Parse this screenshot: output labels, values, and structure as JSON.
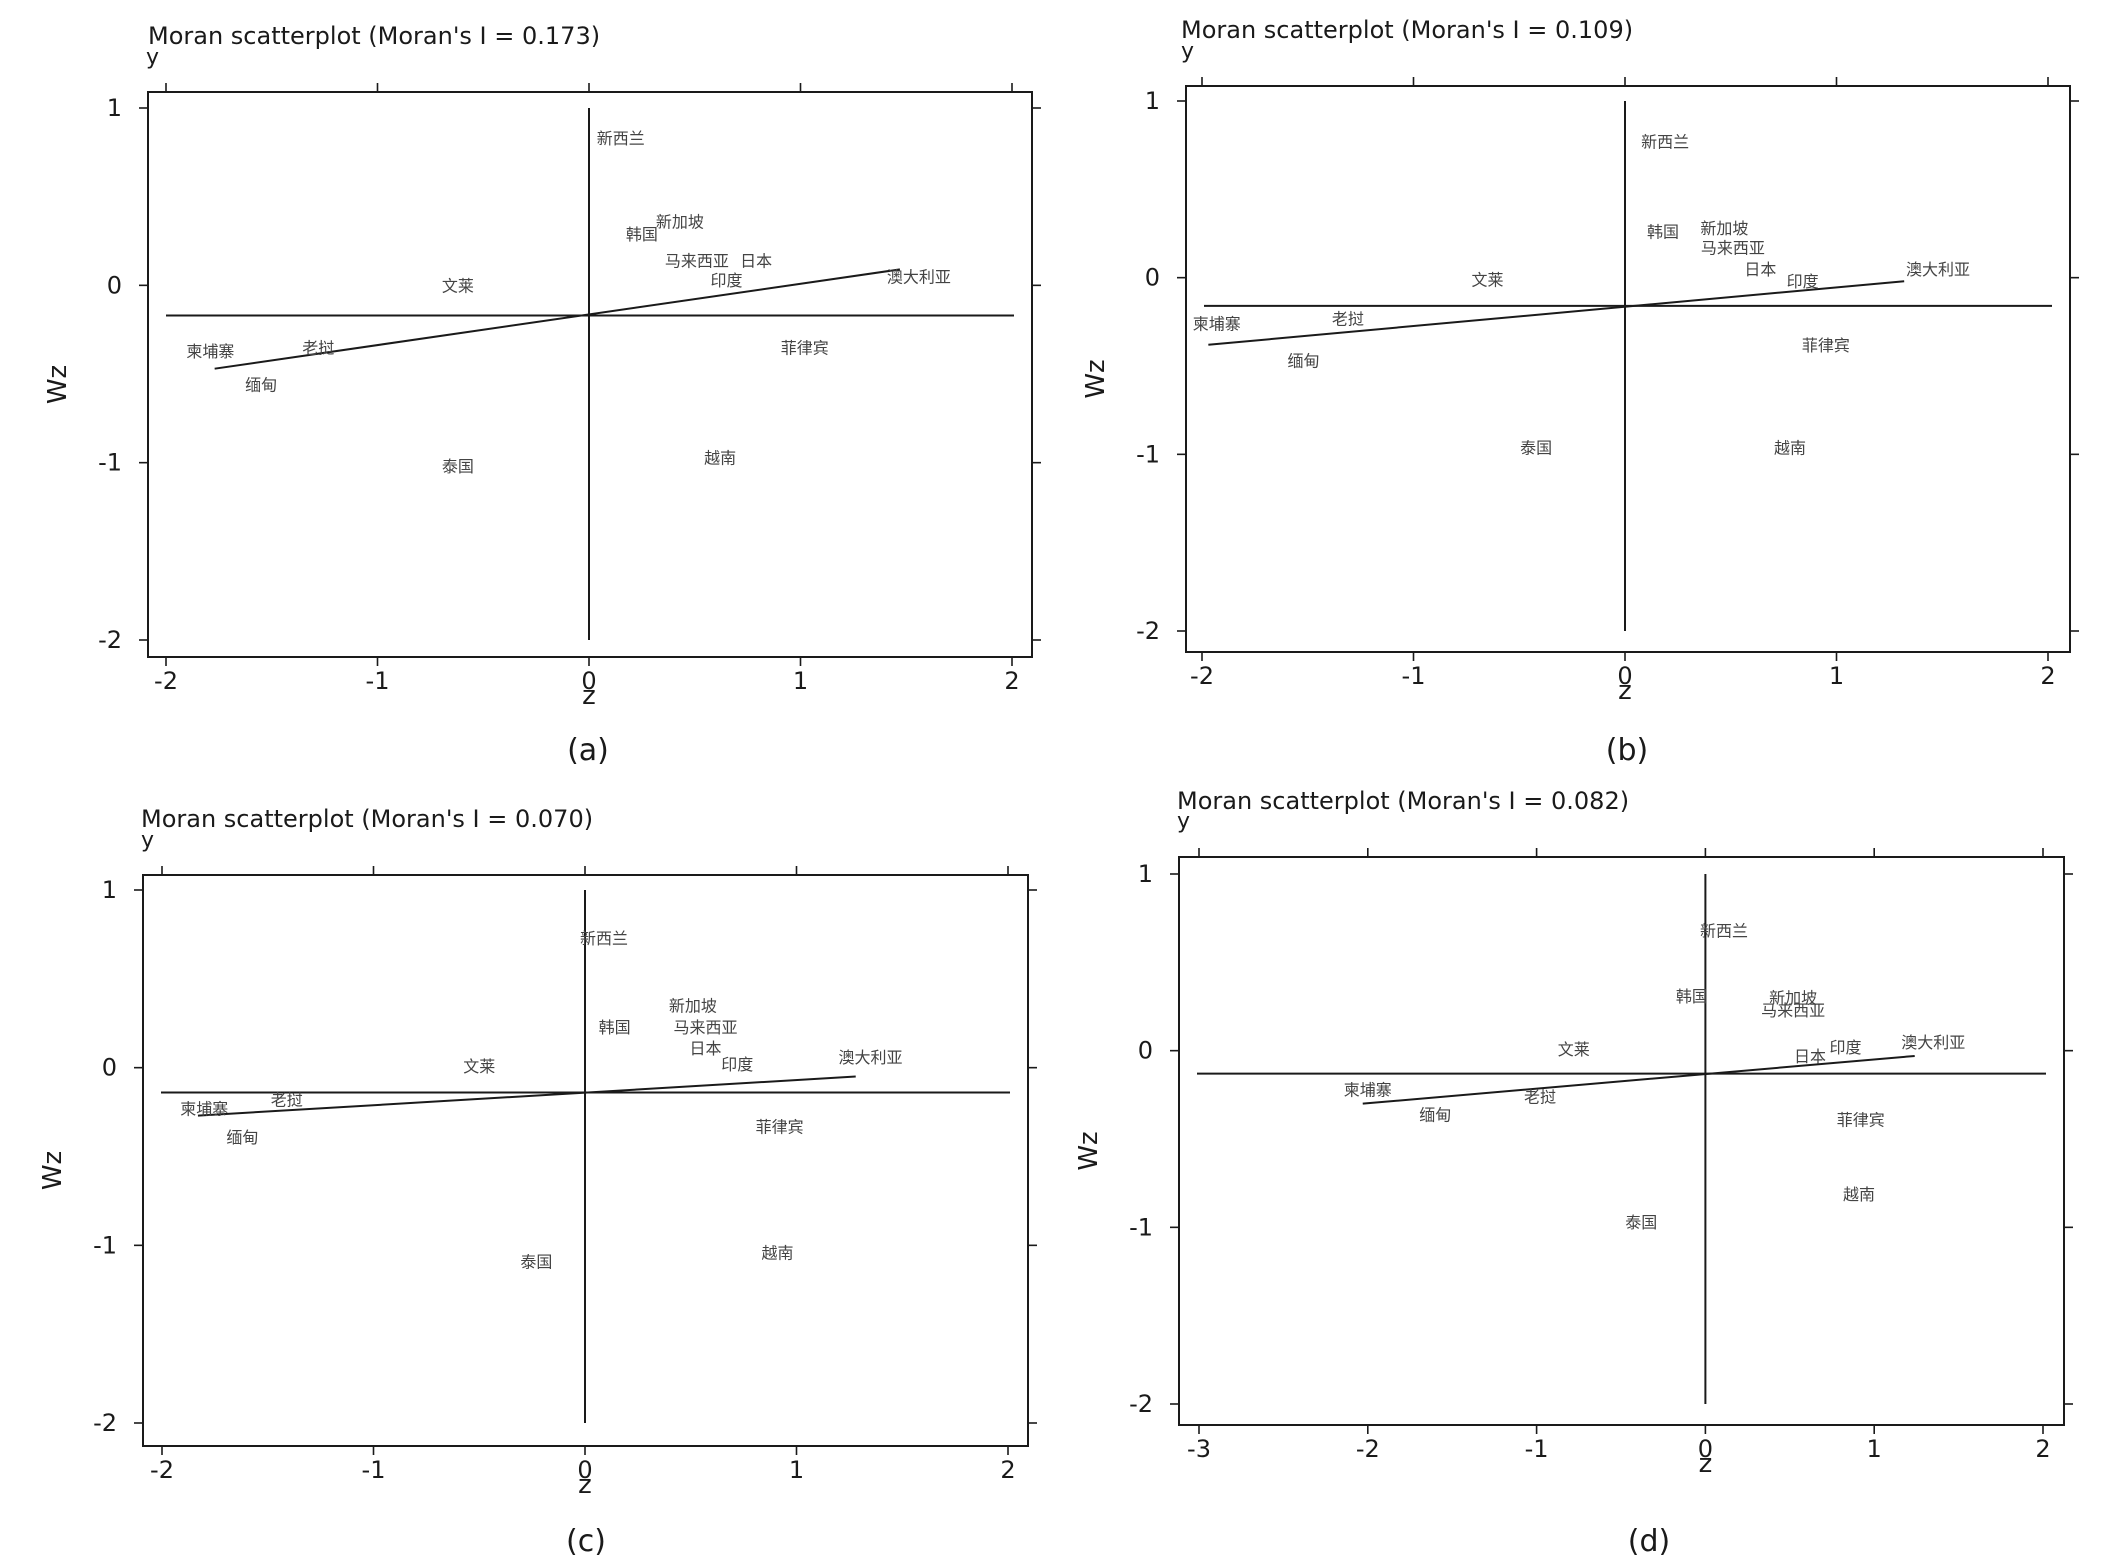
{
  "chart_data": [
    {
      "id": "a",
      "type": "scatter",
      "title": "Moran scatterplot (Moran's I = 0.173)",
      "y_letter": "y",
      "xlabel": "z",
      "ylabel": "Wz",
      "panel_label": "(a)",
      "xlim": [
        -2,
        2
      ],
      "ylim": [
        -2,
        1
      ],
      "xticks": [
        "-2",
        "-1",
        "0",
        "1",
        "2"
      ],
      "yticks": [
        "1",
        "0",
        "-1",
        "-2"
      ],
      "mean_wz": -0.17,
      "fit_line": [
        [
          -1.77,
          -0.47
        ],
        [
          1.47,
          0.09
        ]
      ],
      "points": [
        {
          "label": "新西兰",
          "x": 0.15,
          "y": 0.83
        },
        {
          "label": "新加坡",
          "x": 0.43,
          "y": 0.36
        },
        {
          "label": "韩国",
          "x": 0.25,
          "y": 0.29
        },
        {
          "label": "马来西亚",
          "x": 0.51,
          "y": 0.14
        },
        {
          "label": "日本",
          "x": 0.79,
          "y": 0.14
        },
        {
          "label": "印度",
          "x": 0.65,
          "y": 0.03
        },
        {
          "label": "澳大利亚",
          "x": 1.56,
          "y": 0.05
        },
        {
          "label": "文莱",
          "x": -0.62,
          "y": -0.0
        },
        {
          "label": "柬埔寨",
          "x": -1.79,
          "y": -0.37
        },
        {
          "label": "老挝",
          "x": -1.28,
          "y": -0.35
        },
        {
          "label": "缅甸",
          "x": -1.55,
          "y": -0.56
        },
        {
          "label": "菲律宾",
          "x": 1.02,
          "y": -0.35
        },
        {
          "label": "越南",
          "x": 0.62,
          "y": -0.97
        },
        {
          "label": "泰国",
          "x": -0.62,
          "y": -1.02
        }
      ]
    },
    {
      "id": "b",
      "type": "scatter",
      "title": "Moran scatterplot (Moran's I = 0.109)",
      "y_letter": "y",
      "xlabel": "z",
      "ylabel": "Wz",
      "panel_label": "(b)",
      "xlim": [
        -2,
        2
      ],
      "ylim": [
        -2,
        1
      ],
      "xticks": [
        "-2",
        "-1",
        "0",
        "1",
        "2"
      ],
      "yticks": [
        "1",
        "0",
        "-1",
        "-2"
      ],
      "mean_wz": -0.16,
      "fit_line": [
        [
          -1.97,
          -0.38
        ],
        [
          1.32,
          -0.02
        ]
      ],
      "points": [
        {
          "label": "新西兰",
          "x": 0.19,
          "y": 0.77
        },
        {
          "label": "韩国",
          "x": 0.18,
          "y": 0.26
        },
        {
          "label": "新加坡",
          "x": 0.47,
          "y": 0.28
        },
        {
          "label": "马来西亚",
          "x": 0.51,
          "y": 0.17
        },
        {
          "label": "日本",
          "x": 0.64,
          "y": 0.05
        },
        {
          "label": "印度",
          "x": 0.84,
          "y": -0.02
        },
        {
          "label": "澳大利亚",
          "x": 1.48,
          "y": 0.05
        },
        {
          "label": "文莱",
          "x": -0.65,
          "y": -0.01
        },
        {
          "label": "柬埔寨",
          "x": -1.93,
          "y": -0.26
        },
        {
          "label": "老挝",
          "x": -1.31,
          "y": -0.23
        },
        {
          "label": "缅甸",
          "x": -1.52,
          "y": -0.47
        },
        {
          "label": "菲律宾",
          "x": 0.95,
          "y": -0.38
        },
        {
          "label": "越南",
          "x": 0.78,
          "y": -0.96
        },
        {
          "label": "泰国",
          "x": -0.42,
          "y": -0.96
        }
      ]
    },
    {
      "id": "c",
      "type": "scatter",
      "title": "Moran scatterplot (Moran's I = 0.070)",
      "y_letter": "y",
      "xlabel": "z",
      "ylabel": "Wz",
      "panel_label": "(c)",
      "xlim": [
        -2,
        2
      ],
      "ylim": [
        -2,
        1
      ],
      "xticks": [
        "-2",
        "-1",
        "0",
        "1",
        "2"
      ],
      "yticks": [
        "1",
        "0",
        "-1",
        "-2"
      ],
      "mean_wz": -0.14,
      "fit_line": [
        [
          -1.83,
          -0.27
        ],
        [
          1.28,
          -0.05
        ]
      ],
      "points": [
        {
          "label": "新西兰",
          "x": 0.09,
          "y": 0.73
        },
        {
          "label": "新加坡",
          "x": 0.51,
          "y": 0.35
        },
        {
          "label": "马来西亚",
          "x": 0.57,
          "y": 0.23
        },
        {
          "label": "韩国",
          "x": 0.14,
          "y": 0.23
        },
        {
          "label": "日本",
          "x": 0.57,
          "y": 0.11
        },
        {
          "label": "印度",
          "x": 0.72,
          "y": 0.02
        },
        {
          "label": "澳大利亚",
          "x": 1.35,
          "y": 0.06
        },
        {
          "label": "文莱",
          "x": -0.5,
          "y": 0.01
        },
        {
          "label": "柬埔寨",
          "x": -1.8,
          "y": -0.23
        },
        {
          "label": "老挝",
          "x": -1.41,
          "y": -0.18
        },
        {
          "label": "缅甸",
          "x": -1.62,
          "y": -0.39
        },
        {
          "label": "菲律宾",
          "x": 0.92,
          "y": -0.33
        },
        {
          "label": "越南",
          "x": 0.91,
          "y": -1.04
        },
        {
          "label": "泰国",
          "x": -0.23,
          "y": -1.09
        }
      ]
    },
    {
      "id": "d",
      "type": "scatter",
      "title": "Moran scatterplot (Moran's I = 0.082)",
      "y_letter": "y",
      "xlabel": "z",
      "ylabel": "Wz",
      "panel_label": "(d)",
      "xlim": [
        -3,
        2
      ],
      "ylim": [
        -2,
        1
      ],
      "xticks": [
        "-3",
        "-2",
        "-1",
        "0",
        "1",
        "2"
      ],
      "yticks": [
        "1",
        "0",
        "-1",
        "-2"
      ],
      "mean_wz": -0.13,
      "fit_line": [
        [
          -2.03,
          -0.3
        ],
        [
          1.24,
          -0.03
        ]
      ],
      "points": [
        {
          "label": "新西兰",
          "x": 0.11,
          "y": 0.68
        },
        {
          "label": "韩国",
          "x": -0.08,
          "y": 0.31
        },
        {
          "label": "新加坡",
          "x": 0.52,
          "y": 0.3
        },
        {
          "label": "马来西亚",
          "x": 0.52,
          "y": 0.23
        },
        {
          "label": "日本",
          "x": 0.62,
          "y": -0.03
        },
        {
          "label": "印度",
          "x": 0.83,
          "y": 0.02
        },
        {
          "label": "澳大利亚",
          "x": 1.35,
          "y": 0.05
        },
        {
          "label": "文莱",
          "x": -0.78,
          "y": 0.01
        },
        {
          "label": "柬埔寨",
          "x": -2.0,
          "y": -0.22
        },
        {
          "label": "老挝",
          "x": -0.98,
          "y": -0.26
        },
        {
          "label": "缅甸",
          "x": -1.6,
          "y": -0.36
        },
        {
          "label": "菲律宾",
          "x": 0.92,
          "y": -0.39
        },
        {
          "label": "越南",
          "x": 0.91,
          "y": -0.81
        },
        {
          "label": "泰国",
          "x": -0.38,
          "y": -0.97
        }
      ]
    }
  ]
}
